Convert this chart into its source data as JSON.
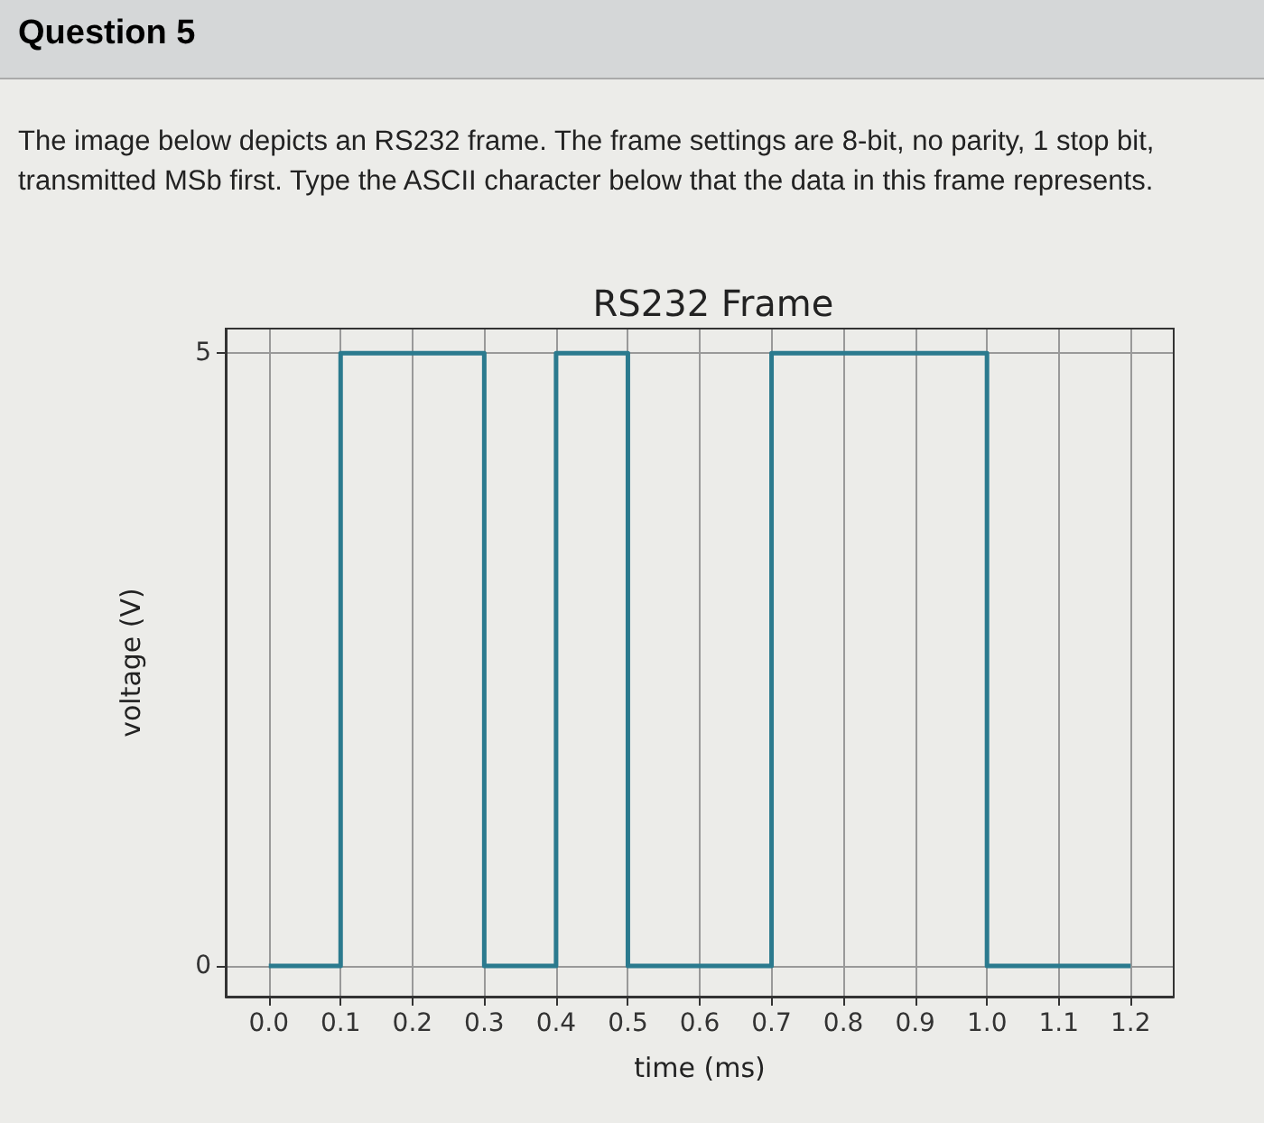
{
  "chart_data": {
    "type": "step",
    "title": "RS232 Frame",
    "xlabel": "time (ms)",
    "ylabel": "voltage (V)",
    "annotations": [
      "Question 5",
      "The image below depicts an RS232 frame. The frame settings are 8-bit, no parity, 1 stop bit, transmitted MSb first. Type the ASCII character below that the data in this frame represents."
    ],
    "x": [
      0,
      0.1,
      0.2,
      0.3,
      0.4,
      0.5,
      0.6,
      0.7,
      0.8,
      0.9,
      1.0,
      1.1,
      1.2
    ],
    "series": [
      {
        "color": "#2b7a8e",
        "values": [
          0,
          5,
          5,
          0,
          5,
          0,
          0,
          5,
          5,
          5,
          0,
          0,
          0
        ]
      }
    ],
    "xlim": [
      -0.06,
      1.26
    ],
    "ylim": [
      -0.25,
      5.2
    ],
    "xticks": [
      {
        "value": 0,
        "label": "0.0"
      },
      0.1,
      0.2,
      0.3,
      0.4,
      0.5,
      0.6,
      0.7,
      0.8,
      0.9,
      {
        "value": 1,
        "label": "1.0"
      },
      1.1,
      1.2
    ],
    "yticks": [
      0,
      5
    ],
    "grid": true,
    "marker": "none",
    "line_style": "solid"
  }
}
